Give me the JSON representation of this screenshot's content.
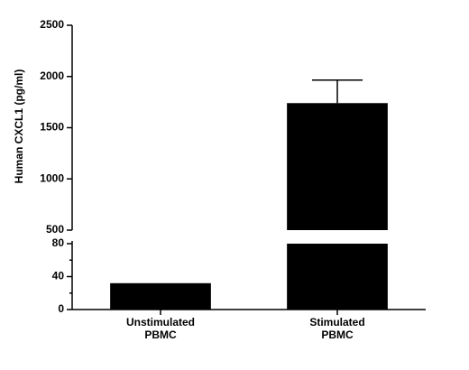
{
  "chart_data": {
    "type": "bar",
    "y_label": "Human CXCL1 (pg/ml)",
    "categories": [
      "Unstimulated\nPBMC",
      "Stimulated\nPBMC"
    ],
    "values": [
      32,
      1740
    ],
    "errors": [
      null,
      225
    ],
    "color": "#000000",
    "y_segments": [
      {
        "ylim": [
          0,
          80
        ],
        "yticks": [
          0,
          40,
          80
        ],
        "minor_yticks": [
          20,
          60
        ]
      },
      {
        "ylim": [
          500,
          2500
        ],
        "yticks": [
          500,
          1000,
          1500,
          2000,
          2500
        ]
      }
    ]
  }
}
